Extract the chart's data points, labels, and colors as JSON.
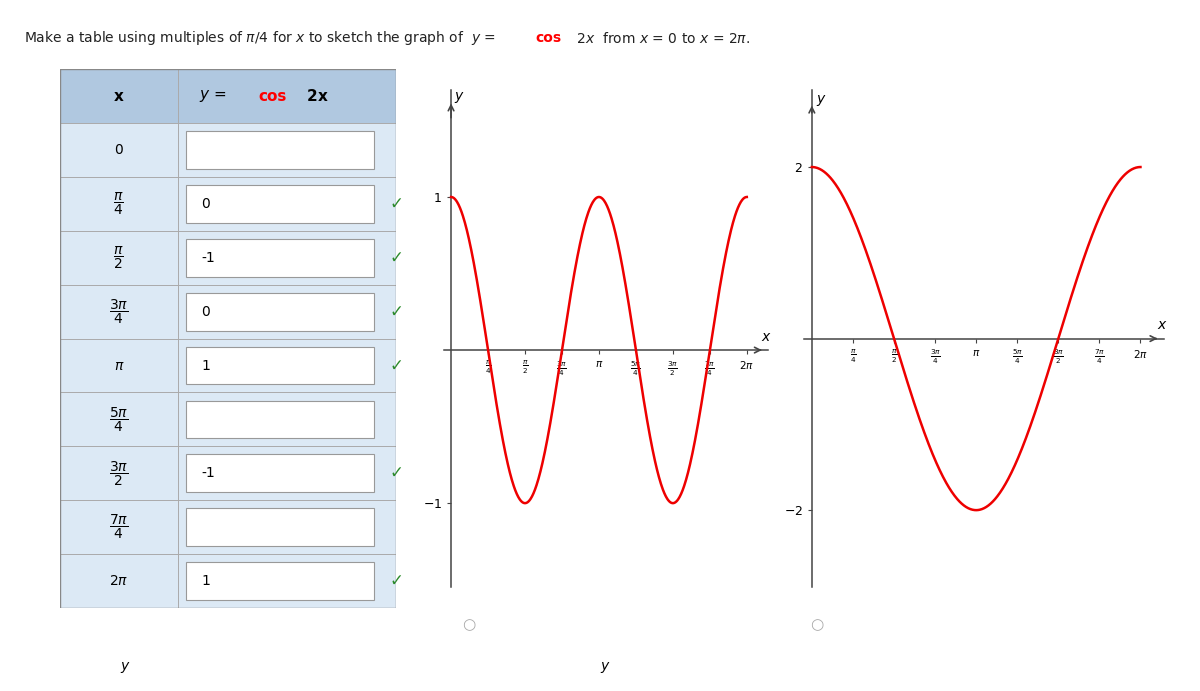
{
  "curve_color": "#ee0000",
  "bg_color": "#ffffff",
  "table_bg": "#dce9f5",
  "table_header_bg": "#b0c8e0",
  "axis_color": "#555555",
  "x_labels_tex": [
    "$0$",
    "$\\dfrac{\\pi}{4}$",
    "$\\dfrac{\\pi}{2}$",
    "$\\dfrac{3\\pi}{4}$",
    "$\\pi$",
    "$\\dfrac{5\\pi}{4}$",
    "$\\dfrac{3\\pi}{2}$",
    "$\\dfrac{7\\pi}{4}$",
    "$2\\pi$"
  ],
  "y_values": [
    "1",
    "0",
    "-1",
    "0",
    "1",
    "0",
    "-1",
    "0",
    "1"
  ],
  "filled": [
    false,
    true,
    true,
    true,
    true,
    false,
    true,
    false,
    true
  ],
  "checked": [
    false,
    true,
    true,
    true,
    true,
    false,
    true,
    false,
    true
  ],
  "xtick_tex": [
    "$\\frac{\\pi}{4}$",
    "$\\frac{\\pi}{2}$",
    "$\\frac{3\\pi}{4}$",
    "$\\pi$",
    "$\\frac{5\\pi}{4}$",
    "$\\frac{3\\pi}{2}$",
    "$\\frac{7\\pi}{4}$",
    "$2\\pi$"
  ]
}
